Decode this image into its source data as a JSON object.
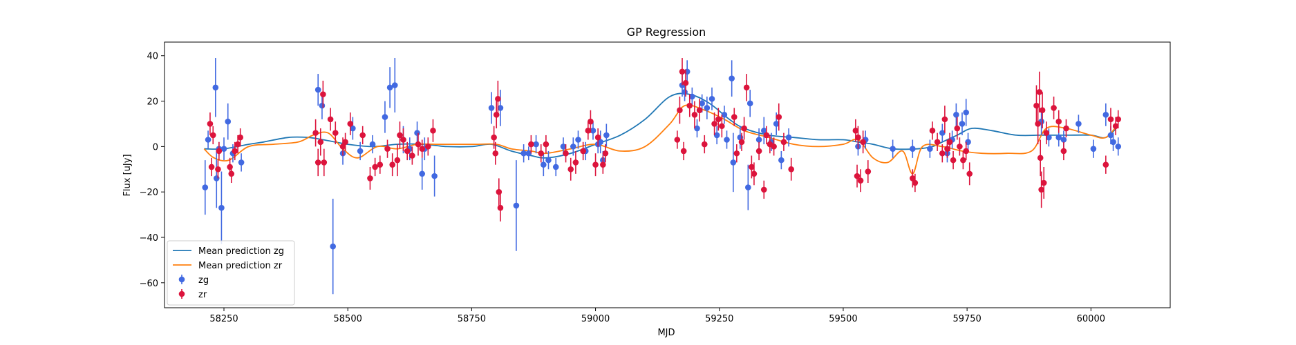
{
  "chart_data": {
    "type": "scatter",
    "title": "GP Regression",
    "xlabel": "MJD",
    "ylabel": "Flux [uJy]",
    "xlim": [
      58130,
      60160
    ],
    "ylim": [
      -71,
      46
    ],
    "xticks": [
      58250,
      58500,
      58750,
      59000,
      59250,
      59500,
      59750,
      60000
    ],
    "yticks": [
      -60,
      -40,
      -20,
      0,
      20,
      40
    ],
    "grid": false,
    "legend_position": "lower-left",
    "legend": [
      "Mean prediction zg",
      "Mean prediction zr",
      "zg",
      "zr"
    ],
    "colors": {
      "zg_line": "#1f77b4",
      "zr_line": "#ff7f0e",
      "zg_points": "#4169e1",
      "zr_points": "#dc143c"
    },
    "series": [
      {
        "name": "Mean prediction zg",
        "kind": "line",
        "x": [
          58210,
          58250,
          58300,
          58330,
          58380,
          58420,
          58450,
          58500,
          58550,
          58600,
          58650,
          58700,
          58750,
          58790,
          58830,
          58870,
          58900,
          58950,
          59000,
          59050,
          59100,
          59150,
          59190,
          59230,
          59270,
          59300,
          59350,
          59400,
          59450,
          59500,
          59530,
          59560,
          59600,
          59650,
          59680,
          59700,
          59730,
          59760,
          59800,
          59850,
          59900,
          59950,
          60000,
          60030,
          60055
        ],
        "y": [
          -1,
          -1,
          1,
          2,
          4,
          4,
          3,
          1,
          0,
          1,
          1,
          0,
          0,
          1,
          -2,
          -4,
          -5,
          -3,
          1,
          5,
          12,
          22,
          23,
          19,
          12,
          8,
          5,
          4,
          3,
          3,
          2,
          1,
          -1,
          -1,
          0,
          2,
          5,
          8,
          7,
          5,
          5,
          5,
          5,
          4,
          9
        ]
      },
      {
        "name": "Mean prediction zr",
        "kind": "line",
        "x": [
          58210,
          58230,
          58260,
          58300,
          58350,
          58400,
          58430,
          58460,
          58490,
          58520,
          58560,
          58600,
          58640,
          58680,
          58720,
          58760,
          58800,
          58830,
          58870,
          58900,
          58950,
          59000,
          59050,
          59100,
          59150,
          59180,
          59220,
          59260,
          59300,
          59350,
          59400,
          59450,
          59500,
          59530,
          59560,
          59590,
          59620,
          59640,
          59660,
          59700,
          59740,
          59780,
          59830,
          59880,
          59910,
          59950,
          60000,
          60030,
          60055
        ],
        "y": [
          -1,
          -5,
          -6,
          0,
          1,
          2,
          5,
          6,
          -1,
          -5,
          0,
          -1,
          1,
          1,
          1,
          1,
          1,
          -1,
          -2,
          -3,
          -1,
          1,
          -2,
          0,
          10,
          18,
          16,
          12,
          7,
          4,
          1,
          0,
          1,
          3,
          -5,
          -7,
          -2,
          -12,
          0,
          0,
          -2,
          -3,
          -3,
          -2,
          8,
          8,
          5,
          4,
          10
        ]
      },
      {
        "name": "zg",
        "kind": "errorbar",
        "points": [
          [
            58212,
            -18,
            12
          ],
          [
            58218,
            3,
            4
          ],
          [
            58233,
            26,
            13
          ],
          [
            58235,
            -14,
            13
          ],
          [
            58240,
            -1,
            3
          ],
          [
            58245,
            -27,
            16
          ],
          [
            58250,
            -1,
            5
          ],
          [
            58258,
            11,
            8
          ],
          [
            58268,
            -3,
            4
          ],
          [
            58285,
            -7,
            4
          ],
          [
            58440,
            25,
            7
          ],
          [
            58448,
            18,
            6
          ],
          [
            58470,
            -44,
            21
          ],
          [
            58490,
            -3,
            5
          ],
          [
            58510,
            8,
            5
          ],
          [
            58525,
            -2,
            4
          ],
          [
            58550,
            1,
            4
          ],
          [
            58575,
            13,
            7
          ],
          [
            58585,
            26,
            9
          ],
          [
            58595,
            27,
            12
          ],
          [
            58612,
            3,
            6
          ],
          [
            58625,
            -1,
            5
          ],
          [
            58640,
            6,
            5
          ],
          [
            58650,
            -12,
            7
          ],
          [
            58655,
            -1,
            5
          ],
          [
            58675,
            -13,
            9
          ],
          [
            58790,
            17,
            7
          ],
          [
            58808,
            17,
            8
          ],
          [
            58840,
            -26,
            20
          ],
          [
            58855,
            -3,
            4
          ],
          [
            58865,
            -3,
            3
          ],
          [
            58880,
            1,
            4
          ],
          [
            58895,
            -8,
            5
          ],
          [
            58905,
            -6,
            4
          ],
          [
            58920,
            -9,
            4
          ],
          [
            58935,
            0,
            4
          ],
          [
            58955,
            0,
            4
          ],
          [
            58965,
            3,
            4
          ],
          [
            58980,
            -2,
            4
          ],
          [
            58995,
            7,
            4
          ],
          [
            59005,
            1,
            4
          ],
          [
            59010,
            2,
            5
          ],
          [
            59015,
            -6,
            4
          ],
          [
            59022,
            5,
            5
          ],
          [
            59175,
            27,
            5
          ],
          [
            59180,
            24,
            4
          ],
          [
            59185,
            33,
            5
          ],
          [
            59195,
            22,
            4
          ],
          [
            59205,
            8,
            4
          ],
          [
            59215,
            19,
            4
          ],
          [
            59225,
            17,
            5
          ],
          [
            59235,
            21,
            5
          ],
          [
            59245,
            5,
            4
          ],
          [
            59260,
            14,
            4
          ],
          [
            59265,
            3,
            4
          ],
          [
            59275,
            30,
            8
          ],
          [
            59278,
            -7,
            13
          ],
          [
            59292,
            4,
            5
          ],
          [
            59308,
            -18,
            10
          ],
          [
            59312,
            19,
            6
          ],
          [
            59330,
            3,
            5
          ],
          [
            59340,
            7,
            6
          ],
          [
            59355,
            2,
            4
          ],
          [
            59365,
            10,
            5
          ],
          [
            59375,
            -6,
            4
          ],
          [
            59390,
            4,
            4
          ],
          [
            59530,
            0,
            4
          ],
          [
            59545,
            3,
            4
          ],
          [
            59600,
            -1,
            4
          ],
          [
            59640,
            -1,
            4
          ],
          [
            59675,
            -1,
            4
          ],
          [
            59700,
            6,
            4
          ],
          [
            59710,
            -3,
            4
          ],
          [
            59720,
            3,
            4
          ],
          [
            59728,
            14,
            5
          ],
          [
            59740,
            10,
            5
          ],
          [
            59748,
            15,
            6
          ],
          [
            59752,
            2,
            4
          ],
          [
            59900,
            11,
            6
          ],
          [
            59915,
            4,
            4
          ],
          [
            59935,
            4,
            4
          ],
          [
            59945,
            3,
            4
          ],
          [
            59975,
            10,
            4
          ],
          [
            60005,
            -1,
            4
          ],
          [
            60030,
            14,
            5
          ],
          [
            60040,
            5,
            4
          ],
          [
            60045,
            2,
            4
          ],
          [
            60055,
            0,
            4
          ]
        ]
      },
      {
        "name": "zr",
        "kind": "errorbar",
        "points": [
          [
            58222,
            10,
            5
          ],
          [
            58225,
            -9,
            4
          ],
          [
            58228,
            5,
            4
          ],
          [
            58238,
            -10,
            4
          ],
          [
            58240,
            -2,
            4
          ],
          [
            58262,
            -9,
            4
          ],
          [
            58265,
            -12,
            4
          ],
          [
            58272,
            -2,
            4
          ],
          [
            58278,
            1,
            4
          ],
          [
            58283,
            4,
            4
          ],
          [
            58435,
            6,
            6
          ],
          [
            58440,
            -7,
            6
          ],
          [
            58445,
            2,
            6
          ],
          [
            58450,
            23,
            6
          ],
          [
            58452,
            -7,
            6
          ],
          [
            58465,
            12,
            5
          ],
          [
            58475,
            6,
            5
          ],
          [
            58490,
            0,
            4
          ],
          [
            58495,
            2,
            4
          ],
          [
            58505,
            10,
            5
          ],
          [
            58530,
            5,
            4
          ],
          [
            58545,
            -14,
            5
          ],
          [
            58555,
            -9,
            4
          ],
          [
            58565,
            -8,
            4
          ],
          [
            58580,
            -1,
            4
          ],
          [
            58590,
            -8,
            5
          ],
          [
            58600,
            -6,
            7
          ],
          [
            58605,
            5,
            6
          ],
          [
            58612,
            3,
            5
          ],
          [
            58620,
            -2,
            4
          ],
          [
            58630,
            -4,
            4
          ],
          [
            58642,
            1,
            5
          ],
          [
            58650,
            -1,
            4
          ],
          [
            58662,
            0,
            4
          ],
          [
            58672,
            7,
            5
          ],
          [
            58795,
            4,
            5
          ],
          [
            58798,
            -3,
            5
          ],
          [
            58800,
            14,
            6
          ],
          [
            58803,
            21,
            8
          ],
          [
            58805,
            -20,
            6
          ],
          [
            58808,
            -27,
            6
          ],
          [
            58870,
            1,
            4
          ],
          [
            58890,
            -3,
            4
          ],
          [
            58900,
            1,
            4
          ],
          [
            58940,
            -3,
            4
          ],
          [
            58950,
            -10,
            5
          ],
          [
            58960,
            -7,
            5
          ],
          [
            58975,
            -2,
            4
          ],
          [
            58985,
            7,
            4
          ],
          [
            58990,
            11,
            5
          ],
          [
            59000,
            -8,
            5
          ],
          [
            59005,
            4,
            4
          ],
          [
            59015,
            -8,
            4
          ],
          [
            59020,
            -3,
            4
          ],
          [
            59165,
            3,
            4
          ],
          [
            59170,
            16,
            6
          ],
          [
            59175,
            33,
            6
          ],
          [
            59178,
            -2,
            4
          ],
          [
            59182,
            28,
            6
          ],
          [
            59190,
            18,
            5
          ],
          [
            59200,
            14,
            6
          ],
          [
            59210,
            16,
            5
          ],
          [
            59220,
            1,
            4
          ],
          [
            59240,
            10,
            5
          ],
          [
            59248,
            12,
            5
          ],
          [
            59255,
            9,
            5
          ],
          [
            59280,
            13,
            4
          ],
          [
            59285,
            -3,
            4
          ],
          [
            59295,
            2,
            4
          ],
          [
            59300,
            8,
            5
          ],
          [
            59305,
            26,
            6
          ],
          [
            59315,
            -9,
            5
          ],
          [
            59320,
            -12,
            5
          ],
          [
            59330,
            -2,
            4
          ],
          [
            59340,
            -19,
            4
          ],
          [
            59345,
            5,
            4
          ],
          [
            59352,
            1,
            4
          ],
          [
            59360,
            0,
            4
          ],
          [
            59370,
            13,
            6
          ],
          [
            59380,
            2,
            4
          ],
          [
            59395,
            -10,
            5
          ],
          [
            59525,
            7,
            5
          ],
          [
            59528,
            -13,
            5
          ],
          [
            59530,
            4,
            5
          ],
          [
            59535,
            -15,
            5
          ],
          [
            59540,
            2,
            5
          ],
          [
            59550,
            -11,
            5
          ],
          [
            59640,
            -14,
            4
          ],
          [
            59645,
            -16,
            4
          ],
          [
            59680,
            7,
            4
          ],
          [
            59690,
            2,
            4
          ],
          [
            59700,
            -3,
            4
          ],
          [
            59705,
            12,
            6
          ],
          [
            59710,
            -1,
            4
          ],
          [
            59715,
            2,
            4
          ],
          [
            59722,
            -6,
            4
          ],
          [
            59730,
            8,
            5
          ],
          [
            59735,
            0,
            4
          ],
          [
            59742,
            -6,
            4
          ],
          [
            59748,
            -2,
            4
          ],
          [
            59755,
            -12,
            5
          ],
          [
            59890,
            18,
            9
          ],
          [
            59893,
            10,
            9
          ],
          [
            59896,
            24,
            9
          ],
          [
            59898,
            -5,
            8
          ],
          [
            59900,
            -19,
            8
          ],
          [
            59902,
            16,
            8
          ],
          [
            59905,
            -16,
            7
          ],
          [
            59910,
            6,
            5
          ],
          [
            59925,
            17,
            5
          ],
          [
            59935,
            11,
            5
          ],
          [
            59945,
            -2,
            4
          ],
          [
            59950,
            8,
            4
          ],
          [
            60030,
            -8,
            4
          ],
          [
            60040,
            12,
            5
          ],
          [
            60050,
            9,
            4
          ],
          [
            60055,
            12,
            4
          ]
        ]
      }
    ]
  }
}
